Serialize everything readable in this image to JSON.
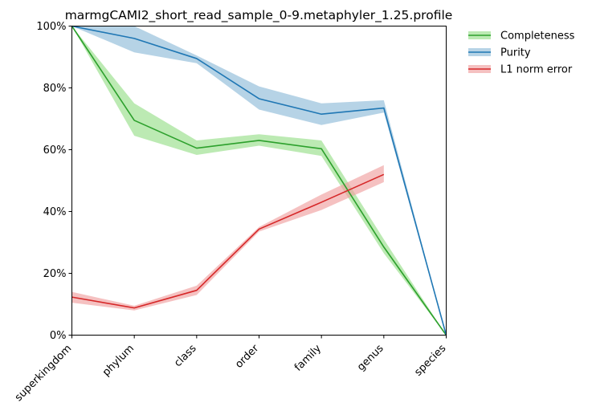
{
  "chart_data": {
    "type": "line",
    "title": "marmgCAMI2_short_read_sample_0-9.metaphyler_1.25.profile",
    "xlabel": "",
    "ylabel": "",
    "categories": [
      "superkingdom",
      "phylum",
      "class",
      "order",
      "family",
      "genus",
      "species"
    ],
    "ylim": [
      0,
      100
    ],
    "yticks": [
      0,
      20,
      40,
      60,
      80,
      100
    ],
    "ytick_labels": [
      "0%",
      "20%",
      "40%",
      "60%",
      "80%",
      "100%"
    ],
    "grid": false,
    "legend_position": "outside-top-right",
    "series": [
      {
        "name": "Completeness",
        "color": "#2ca02c",
        "band_color": "#98df8a",
        "values": [
          100,
          69.5,
          60.5,
          63,
          60.3,
          28.5,
          0
        ],
        "lower": [
          100,
          64.5,
          58.3,
          61.3,
          58,
          26.5,
          0
        ],
        "upper": [
          100,
          75,
          63,
          65,
          63,
          31,
          0
        ]
      },
      {
        "name": "Purity",
        "color": "#1f77b4",
        "band_color": "#8fbbd9",
        "values": [
          100,
          96,
          89.5,
          76.5,
          71.5,
          73.5,
          0
        ],
        "lower": [
          100,
          91.5,
          88,
          73,
          68,
          72,
          0
        ],
        "upper": [
          100,
          100,
          90.5,
          80.5,
          75,
          76,
          0
        ]
      },
      {
        "name": "L1 norm error",
        "color": "#d62728",
        "band_color": "#f0a0a0",
        "values": [
          12.3,
          8.8,
          14.5,
          34.3,
          43,
          52,
          null
        ],
        "lower": [
          10.5,
          8,
          13,
          33.5,
          40.5,
          49.5,
          null
        ],
        "upper": [
          14,
          9.5,
          16,
          35,
          45.5,
          55,
          null
        ]
      }
    ]
  }
}
